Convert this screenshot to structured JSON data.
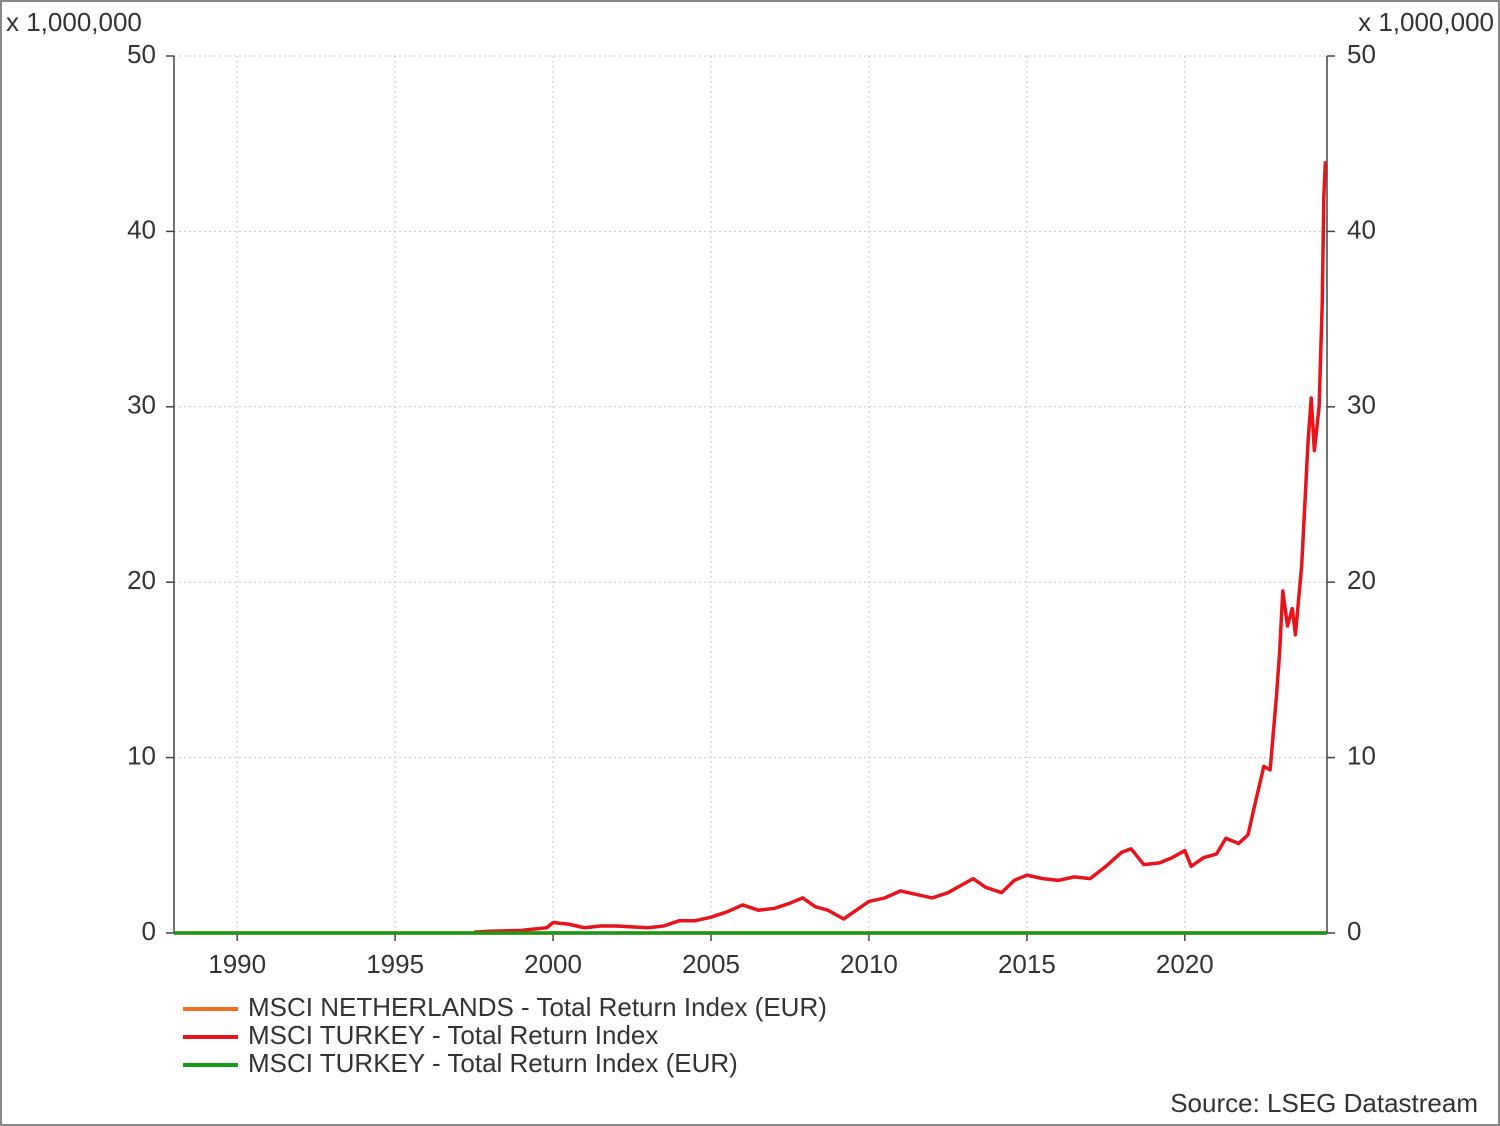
{
  "chart_data": {
    "type": "line",
    "y_label": "x 1,000,000",
    "y2_label": "x 1,000,000",
    "source": "Source: LSEG Datastream",
    "xlim": [
      1988,
      2024.5
    ],
    "xticks": [
      1990,
      1995,
      2000,
      2005,
      2010,
      2015,
      2020
    ],
    "ylim": [
      0,
      50
    ],
    "yticks": [
      0,
      10,
      20,
      30,
      40,
      50
    ],
    "y2lim": [
      0,
      50
    ],
    "y2ticks": [
      0,
      10,
      20,
      30,
      40,
      50
    ],
    "grid": true,
    "legend": "bottom-left",
    "series": [
      {
        "name": "MSCI NETHERLANDS - Total Return Index (EUR)",
        "color": "#f07020",
        "x": [
          1988,
          1995,
          2000,
          2005,
          2010,
          2015,
          2020,
          2024.5
        ],
        "values": [
          0.0001,
          0.0002,
          0.0004,
          0.0003,
          0.0003,
          0.0005,
          0.0006,
          0.0009
        ]
      },
      {
        "name": "MSCI TURKEY - Total Return Index",
        "color": "#e8141c",
        "x": [
          1997.5,
          1998,
          1999,
          1999.8,
          2000,
          2000.5,
          2001,
          2001.5,
          2002,
          2002.5,
          2003,
          2003.5,
          2004,
          2004.5,
          2005,
          2005.5,
          2006,
          2006.5,
          2007,
          2007.5,
          2007.9,
          2008.3,
          2008.7,
          2009.2,
          2009.6,
          2010,
          2010.5,
          2011,
          2011.5,
          2012,
          2012.5,
          2013,
          2013.3,
          2013.7,
          2014.2,
          2014.6,
          2015,
          2015.5,
          2016,
          2016.5,
          2017,
          2017.5,
          2018,
          2018.3,
          2018.7,
          2019.2,
          2019.6,
          2020,
          2020.2,
          2020.6,
          2021,
          2021.3,
          2021.7,
          2022,
          2022.2,
          2022.5,
          2022.7,
          2022.9,
          2023,
          2023.1,
          2023.25,
          2023.4,
          2023.5,
          2023.7,
          2023.9,
          2024,
          2024.1,
          2024.25,
          2024.3,
          2024.35,
          2024.4,
          2024.45
        ],
        "values": [
          0.05,
          0.1,
          0.15,
          0.3,
          0.6,
          0.5,
          0.3,
          0.4,
          0.4,
          0.35,
          0.3,
          0.4,
          0.7,
          0.7,
          0.9,
          1.2,
          1.6,
          1.3,
          1.4,
          1.7,
          2.0,
          1.5,
          1.3,
          0.8,
          1.3,
          1.8,
          2.0,
          2.4,
          2.2,
          2.0,
          2.3,
          2.8,
          3.1,
          2.6,
          2.3,
          3.0,
          3.3,
          3.1,
          3.0,
          3.2,
          3.1,
          3.8,
          4.6,
          4.8,
          3.9,
          4.0,
          4.3,
          4.7,
          3.8,
          4.3,
          4.5,
          5.4,
          5.1,
          5.6,
          7.2,
          9.5,
          9.3,
          13.5,
          16,
          19.5,
          17.5,
          18.5,
          17.0,
          21,
          28,
          30.5,
          27.5,
          30,
          33,
          36,
          42,
          44
        ]
      },
      {
        "name": "MSCI TURKEY - Total Return Index (EUR)",
        "color": "#1a9a1a",
        "x": [
          1988,
          1995,
          2000,
          2005,
          2010,
          2015,
          2020,
          2024.5
        ],
        "values": [
          0.0001,
          0.0003,
          0.0008,
          0.0006,
          0.0007,
          0.0006,
          0.0003,
          0.0004
        ]
      }
    ]
  }
}
